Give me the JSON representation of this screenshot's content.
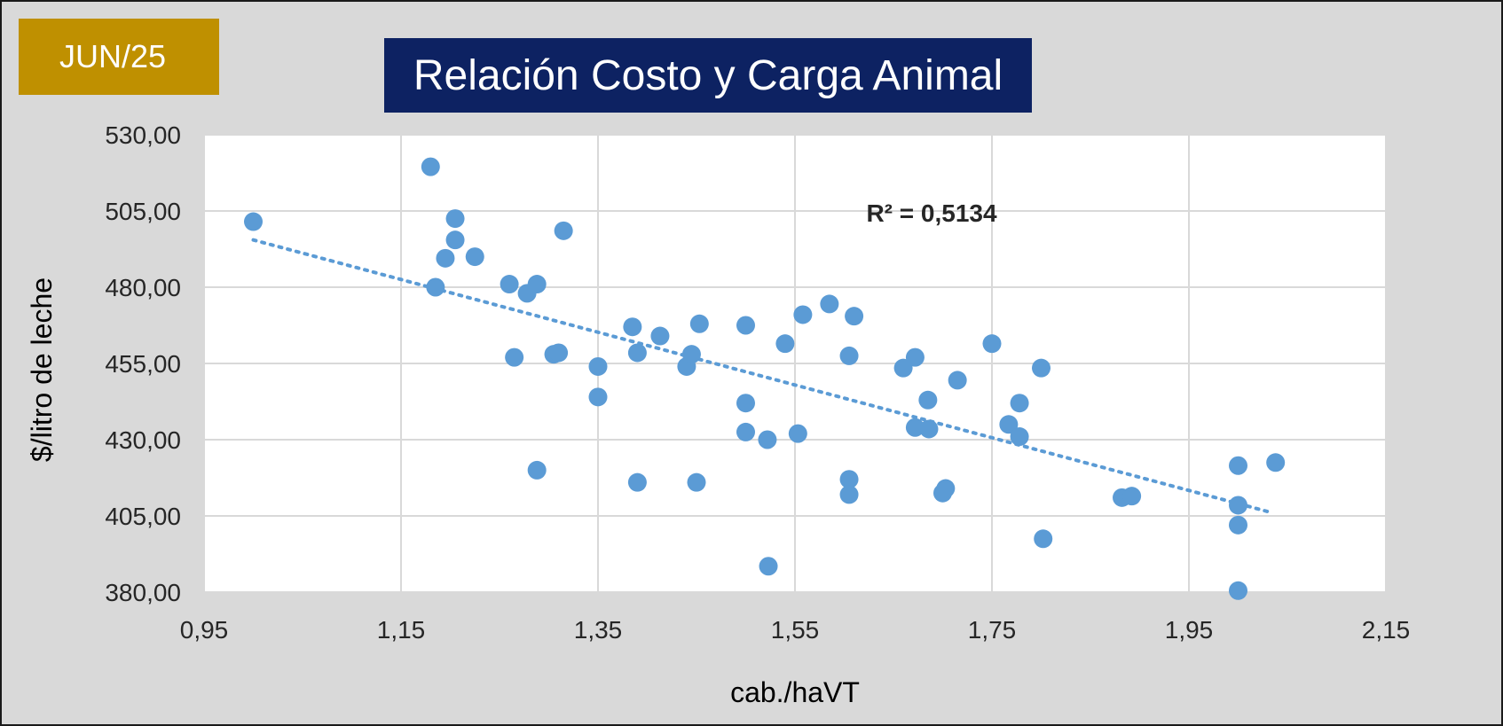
{
  "badge": {
    "label": "JUN/25",
    "color": "#bf9000"
  },
  "title": {
    "text": "Relación Costo y Carga Animal",
    "color": "#0d2262"
  },
  "chart_data": {
    "type": "scatter",
    "title": "Relación Costo y Carga Animal",
    "xlabel": "cab./haVT",
    "ylabel": "$/litro de leche",
    "xlim": [
      0.95,
      2.15
    ],
    "ylim": [
      380,
      530
    ],
    "x_ticks": [
      "0,95",
      "1,15",
      "1,35",
      "1,55",
      "1,75",
      "1,95",
      "2,15"
    ],
    "y_ticks": [
      "530,00",
      "505,00",
      "480,00",
      "455,00",
      "430,00",
      "405,00",
      "380,00"
    ],
    "grid": true,
    "marker_color": "#5b9bd5",
    "trendline": {
      "type": "linear",
      "x_range": [
        1.0,
        2.035
      ],
      "y_start": 495.5,
      "y_end": 406.0,
      "r2_label": "R² = 0,5134",
      "color": "#5b9bd5",
      "style": "dotted"
    },
    "points": [
      [
        1.0,
        501.5
      ],
      [
        1.18,
        519.5
      ],
      [
        1.185,
        480
      ],
      [
        1.195,
        489.5
      ],
      [
        1.205,
        502.5
      ],
      [
        1.205,
        495.5
      ],
      [
        1.225,
        490
      ],
      [
        1.26,
        481
      ],
      [
        1.265,
        457
      ],
      [
        1.278,
        478
      ],
      [
        1.288,
        481
      ],
      [
        1.288,
        420
      ],
      [
        1.305,
        458
      ],
      [
        1.31,
        458.5
      ],
      [
        1.315,
        498.5
      ],
      [
        1.35,
        454
      ],
      [
        1.35,
        444
      ],
      [
        1.385,
        467
      ],
      [
        1.39,
        458.5
      ],
      [
        1.39,
        416
      ],
      [
        1.413,
        464
      ],
      [
        1.44,
        454
      ],
      [
        1.445,
        458
      ],
      [
        1.45,
        416
      ],
      [
        1.453,
        468
      ],
      [
        1.5,
        467.5
      ],
      [
        1.5,
        442
      ],
      [
        1.5,
        432.5
      ],
      [
        1.522,
        430
      ],
      [
        1.523,
        388.5
      ],
      [
        1.54,
        461.5
      ],
      [
        1.553,
        432
      ],
      [
        1.558,
        471
      ],
      [
        1.585,
        474.5
      ],
      [
        1.605,
        457.5
      ],
      [
        1.605,
        417
      ],
      [
        1.605,
        412
      ],
      [
        1.61,
        470.5
      ],
      [
        1.66,
        453.5
      ],
      [
        1.672,
        457
      ],
      [
        1.672,
        434
      ],
      [
        1.685,
        443
      ],
      [
        1.686,
        433.5
      ],
      [
        1.7,
        412.5
      ],
      [
        1.703,
        414
      ],
      [
        1.715,
        449.5
      ],
      [
        1.75,
        461.5
      ],
      [
        1.767,
        435
      ],
      [
        1.778,
        442
      ],
      [
        1.778,
        431
      ],
      [
        1.8,
        453.5
      ],
      [
        1.802,
        397.5
      ],
      [
        1.882,
        411
      ],
      [
        1.892,
        411.5
      ],
      [
        2.0,
        421.5
      ],
      [
        2.0,
        408.5
      ],
      [
        2.0,
        402
      ],
      [
        2.0,
        380.5
      ],
      [
        2.038,
        422.5
      ]
    ]
  }
}
